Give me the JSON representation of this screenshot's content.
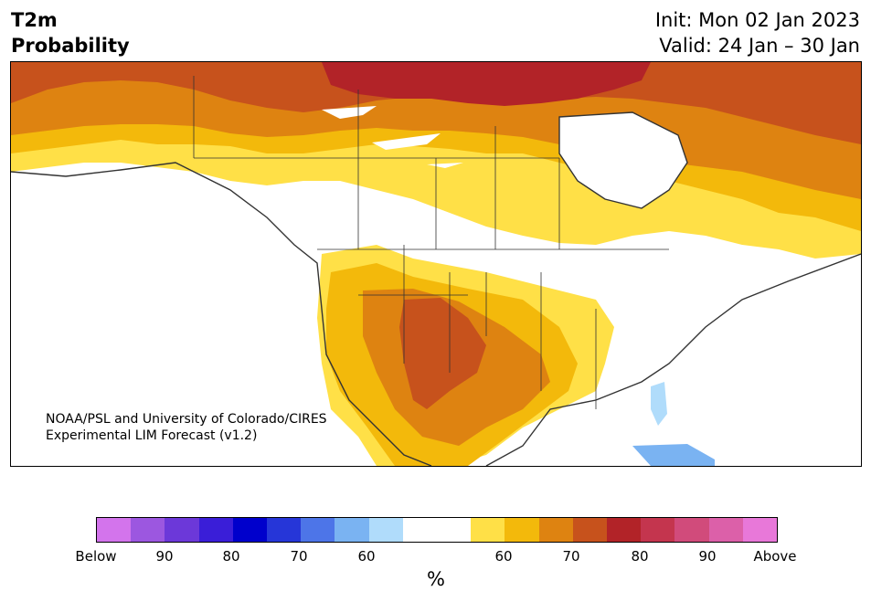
{
  "header": {
    "title_line1": "T2m",
    "title_line2": "Probability",
    "init_text": "Init: Mon 02 Jan 2023",
    "valid_text": "Valid: 24 Jan – 30 Jan"
  },
  "map": {
    "credit_line1": "NOAA/PSL and University of Colorado/CIRES",
    "credit_line2": "Experimental LIM Forecast (v1.2)"
  },
  "colorbar": {
    "colors": [
      "#d374ec",
      "#9c57e0",
      "#6c38d9",
      "#3a1ed8",
      "#0000cc",
      "#2636d8",
      "#4d75e8",
      "#7ab3f2",
      "#b0dcfb",
      "#ffffff",
      "#ffffff",
      "#ffe047",
      "#f3b90b",
      "#de8311",
      "#c7521c",
      "#b22328",
      "#c4354e",
      "#d14b7b",
      "#dc60a9",
      "#e878d9"
    ],
    "tick_labels": [
      "Below",
      "90",
      "80",
      "70",
      "60",
      "60",
      "70",
      "80",
      "90",
      "Above"
    ],
    "unit_label": "%"
  }
}
